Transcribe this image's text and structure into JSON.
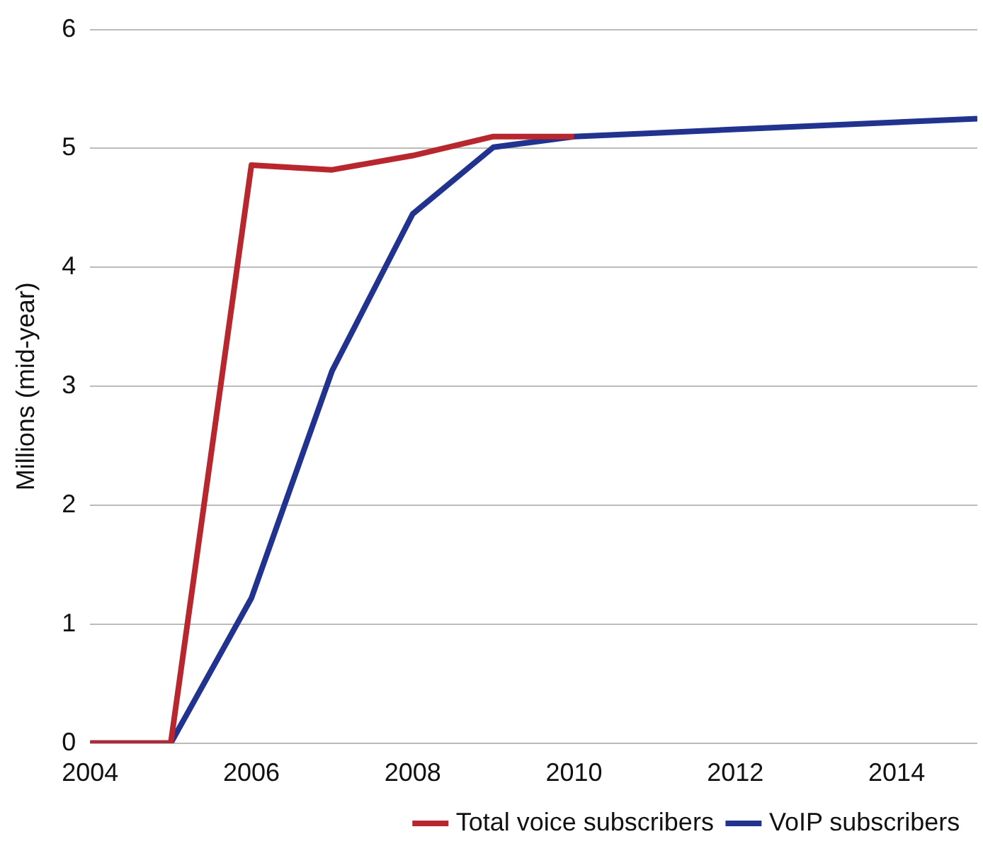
{
  "chart_data": {
    "type": "line",
    "ylabel": "Millions (mid-year)",
    "x": [
      2004,
      2005,
      2006,
      2007,
      2008,
      2009,
      2010,
      2011,
      2012,
      2013,
      2014,
      2015
    ],
    "series": [
      {
        "name": "Total voice subscribers",
        "color": "#b8262e",
        "values": [
          0,
          0,
          4.86,
          4.82,
          4.94,
          5.1,
          5.1,
          null,
          null,
          null,
          null,
          null
        ]
      },
      {
        "name": "VoIP subscribers",
        "color": "#22328f",
        "values": [
          0,
          0,
          1.22,
          3.13,
          4.45,
          5.01,
          5.1,
          5.13,
          5.16,
          5.19,
          5.22,
          5.25
        ]
      }
    ],
    "xlim": [
      2004,
      2015
    ],
    "xticks": [
      2004,
      2006,
      2008,
      2010,
      2012,
      2014
    ],
    "ylim": [
      0,
      6
    ],
    "yticks": [
      0,
      1,
      2,
      3,
      4,
      5,
      6
    ],
    "grid": "y",
    "legend": "bottom",
    "marker": "none",
    "line_style": "solid"
  }
}
